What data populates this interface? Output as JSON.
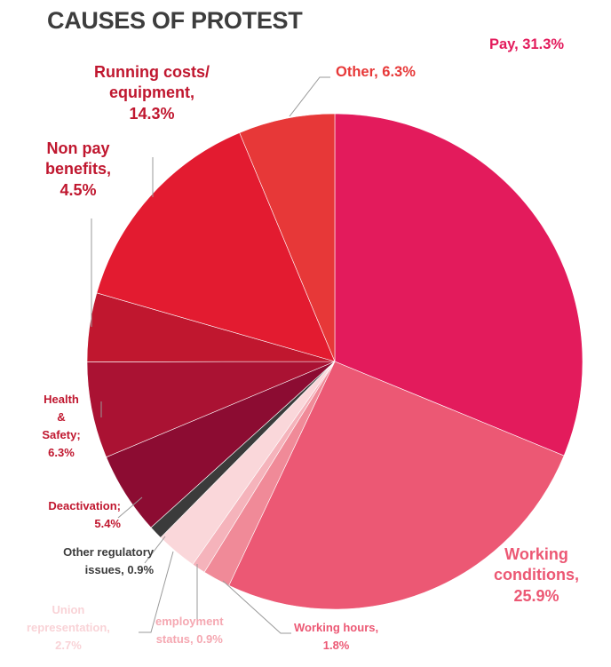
{
  "title": "CAUSES OF PROTEST",
  "chart_data": {
    "type": "pie",
    "title": "CAUSES OF PROTEST",
    "slices": [
      {
        "key": "pay",
        "label": "Pay, 31.3%",
        "value": 31.3,
        "color": "#e31b5c"
      },
      {
        "key": "working-conditions",
        "label": "Working\nconditions,\n25.9%",
        "value": 25.9,
        "color": "#ec5874"
      },
      {
        "key": "working-hours",
        "label": "Working hours,\n1.8%",
        "value": 1.8,
        "color": "#f08a98"
      },
      {
        "key": "employment-status",
        "label": "employment\nstatus, 0.9%",
        "value": 0.9,
        "color": "#f5b3bb"
      },
      {
        "key": "union-representation",
        "label": "Union\nrepresentation,\n2.7%",
        "value": 2.7,
        "color": "#fad7da"
      },
      {
        "key": "other-regulatory",
        "label": "Other regulatory\nissues, 0.9%",
        "value": 0.9,
        "color": "#3b3b3b"
      },
      {
        "key": "deactivation",
        "label": "Deactivation;\n5.4%",
        "value": 5.4,
        "color": "#8c0c32"
      },
      {
        "key": "health-safety",
        "label": "Health\n&\nSafety;\n6.3%",
        "value": 6.3,
        "color": "#aa1233"
      },
      {
        "key": "non-pay-benefits",
        "label": "Non pay\nbenefits,\n4.5%",
        "value": 4.5,
        "color": "#c0172f"
      },
      {
        "key": "running-costs",
        "label": "Running costs/\nequipment,\n14.3%",
        "value": 14.3,
        "color": "#e31b30"
      },
      {
        "key": "other",
        "label": "Other, 6.3%",
        "value": 6.3,
        "color": "#e73838"
      }
    ],
    "label_colors": {
      "pay": "#e31b5c",
      "working-conditions": "#ec5874",
      "working-hours": "#ec5874",
      "employment-status": "#f5a8b2",
      "union-representation": "#f9d3d7",
      "other-regulatory": "#3b3b3b",
      "deactivation": "#c0172f",
      "health-safety": "#c0172f",
      "non-pay-benefits": "#c0172f",
      "running-costs": "#c0172f",
      "other": "#e73838"
    }
  }
}
